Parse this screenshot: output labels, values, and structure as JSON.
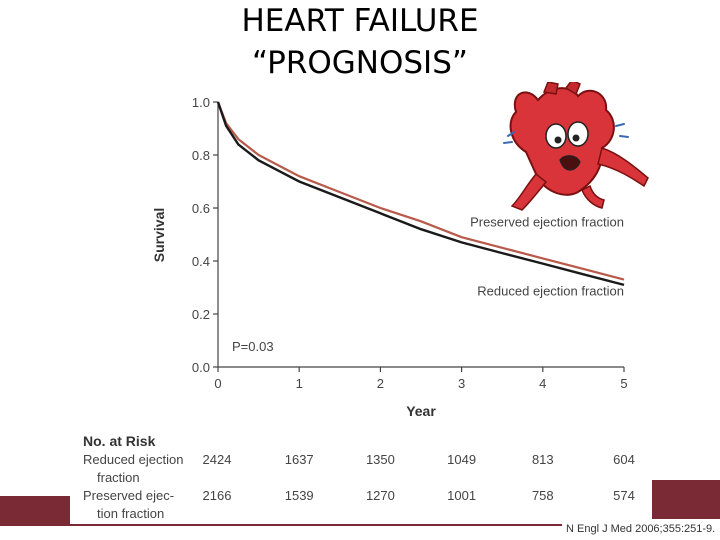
{
  "slide": {
    "title_line1": "HEART FAILURE",
    "title_line2": "“PROGNOSIS”",
    "citation": "N Engl J Med 2006;355:251-9."
  },
  "colors": {
    "reduced": "#1a1a1a",
    "preserved": "#b85a4a",
    "band": "#7a2a35",
    "axis": "#444444"
  },
  "chart_data": {
    "type": "line",
    "xlabel": "Year",
    "ylabel": "Survival",
    "xlim": [
      0,
      5
    ],
    "ylim": [
      0.0,
      1.0
    ],
    "x_ticks": [
      "0",
      "1",
      "2",
      "3",
      "4",
      "5"
    ],
    "y_ticks": [
      "0.0",
      "0.2",
      "0.4",
      "0.6",
      "0.8",
      "1.0"
    ],
    "grid": false,
    "annotation": "P=0.03",
    "series": [
      {
        "name": "Preserved ejection fraction",
        "x": [
          0,
          0.1,
          0.25,
          0.5,
          0.75,
          1,
          1.5,
          2,
          2.5,
          3,
          3.5,
          4,
          4.5,
          5
        ],
        "y": [
          1.0,
          0.92,
          0.86,
          0.8,
          0.76,
          0.72,
          0.66,
          0.6,
          0.55,
          0.49,
          0.45,
          0.41,
          0.37,
          0.33
        ]
      },
      {
        "name": "Reduced ejection fraction",
        "x": [
          0,
          0.1,
          0.25,
          0.5,
          0.75,
          1,
          1.5,
          2,
          2.5,
          3,
          3.5,
          4,
          4.5,
          5
        ],
        "y": [
          1.0,
          0.91,
          0.84,
          0.78,
          0.74,
          0.7,
          0.64,
          0.58,
          0.52,
          0.47,
          0.43,
          0.39,
          0.35,
          0.31
        ]
      }
    ],
    "at_risk": {
      "header": "No. at Risk",
      "rows": [
        {
          "label_lines": [
            "Reduced ejection",
            "fraction"
          ],
          "values": [
            "2424",
            "1637",
            "1350",
            "1049",
            "813",
            "604"
          ]
        },
        {
          "label_lines": [
            "Preserved ejec-",
            "tion fraction"
          ],
          "values": [
            "2166",
            "1539",
            "1270",
            "1001",
            "758",
            "574"
          ]
        }
      ]
    }
  }
}
